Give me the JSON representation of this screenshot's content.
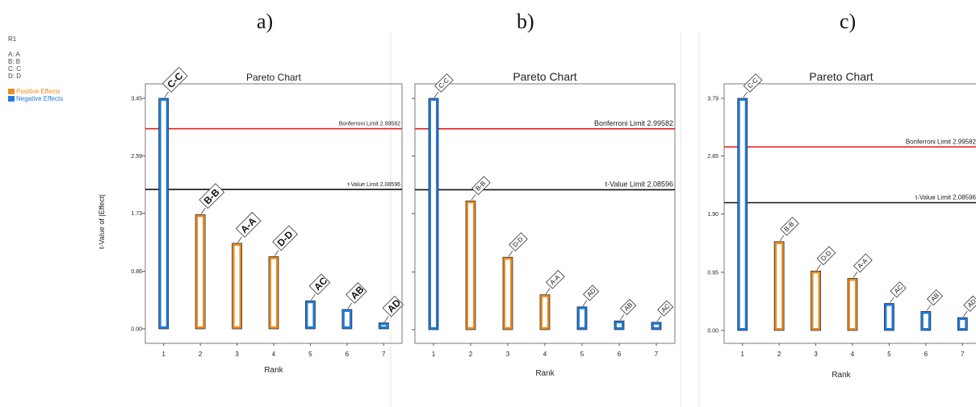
{
  "sidebar": {
    "response": "R1",
    "factors": [
      "A: A",
      "B: B",
      "C: C",
      "D: D"
    ],
    "legend": [
      {
        "label": "Positive Effects",
        "color": "#e98b1f"
      },
      {
        "label": "Negative Effects",
        "color": "#1f7be0"
      }
    ]
  },
  "panel_letters": [
    "a)",
    "b)",
    "c)"
  ],
  "colors": {
    "positive": "#e98b1f",
    "negative": "#1f7be0",
    "bonferroni": "#e62020",
    "tvalue": "#111111"
  },
  "chart_data": [
    {
      "type": "bar",
      "title": "Pareto Chart",
      "xlabel": "Rank",
      "ylabel": "t-Value of |Effect|",
      "ylim": [
        0,
        3.45
      ],
      "yticks": [
        "0.00",
        "0.86",
        "1.73",
        "2.59",
        "3.45"
      ],
      "categories": [
        "1",
        "2",
        "3",
        "4",
        "5",
        "6",
        "7"
      ],
      "labels": [
        "C-C",
        "B-B",
        "A-A",
        "D-D",
        "AC",
        "AB",
        "AD"
      ],
      "values": [
        3.45,
        1.71,
        1.28,
        1.08,
        0.42,
        0.29,
        0.09
      ],
      "effects": [
        "negative",
        "positive",
        "positive",
        "positive",
        "negative",
        "negative",
        "negative"
      ],
      "bonferroni": {
        "label": "Bonferroni Limit 2.99582",
        "value": 2.99582
      },
      "tvalue": {
        "label": "t-Value Limit 2.08596",
        "value": 2.08596
      }
    },
    {
      "type": "bar",
      "title": "Pareto Chart",
      "xlabel": "Rank",
      "ylabel": "",
      "ylim": [
        0,
        3.45
      ],
      "yticks": [],
      "categories": [
        "1",
        "2",
        "3",
        "4",
        "5",
        "6",
        "7"
      ],
      "labels": [
        "C-C",
        "B-B",
        "D-D",
        "A-A",
        "AD",
        "AB",
        "AC"
      ],
      "values": [
        3.45,
        1.92,
        1.08,
        0.52,
        0.34,
        0.13,
        0.11
      ],
      "effects": [
        "negative",
        "positive",
        "positive",
        "positive",
        "negative",
        "negative",
        "negative"
      ],
      "bonferroni": {
        "label": "Bonferroni Limit 2.99582",
        "value": 2.99582
      },
      "tvalue": {
        "label": "t-Value Limit 2.08596",
        "value": 2.08596
      }
    },
    {
      "type": "bar",
      "title": "Pareto Chart",
      "xlabel": "Rank",
      "ylabel": "",
      "ylim": [
        0,
        3.79
      ],
      "yticks": [
        "0.00",
        "0.95",
        "1.90",
        "2.85",
        "3.79"
      ],
      "categories": [
        "1",
        "2",
        "3",
        "4",
        "5",
        "6",
        "7"
      ],
      "labels": [
        "C-C",
        "B-B",
        "D-D",
        "A-A",
        "AC",
        "AB",
        "AD"
      ],
      "values": [
        3.79,
        1.45,
        0.97,
        0.85,
        0.44,
        0.31,
        0.21
      ],
      "effects": [
        "negative",
        "positive",
        "positive",
        "positive",
        "negative",
        "negative",
        "negative"
      ],
      "bonferroni": {
        "label": "Bonferroni Limit 2.99582",
        "value": 2.99582
      },
      "tvalue": {
        "label": "t-Value Limit 2.08596",
        "value": 2.08596
      }
    }
  ]
}
